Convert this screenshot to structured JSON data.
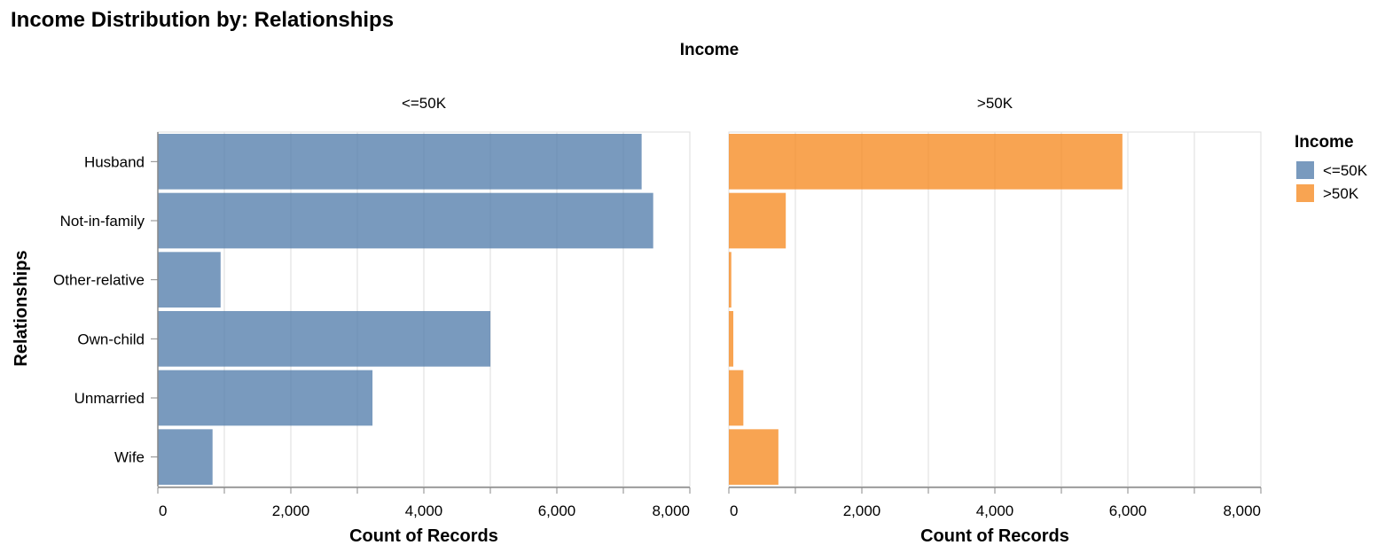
{
  "chart_data": {
    "type": "bar",
    "orientation": "horizontal",
    "title": "Income Distribution by: Relationships",
    "facet_title": "Income",
    "ylabel": "Relationships",
    "xlabel": "Count of Records",
    "xlim": [
      0,
      8000
    ],
    "xticks": [
      "0",
      "2,000",
      "4,000",
      "6,000",
      "8,000"
    ],
    "grid": true,
    "legend_position": "right",
    "legend_title": "Income",
    "categories": [
      "Husband",
      "Not-in-family",
      "Other-relative",
      "Own-child",
      "Unmarried",
      "Wife"
    ],
    "series": [
      {
        "name": "<=50K",
        "color": "#4c78a8",
        "values": [
          7275,
          7449,
          944,
          5001,
          3228,
          823
        ]
      },
      {
        "name": ">50K",
        "color": "#f58518",
        "values": [
          5918,
          856,
          37,
          67,
          218,
          745
        ]
      }
    ]
  }
}
